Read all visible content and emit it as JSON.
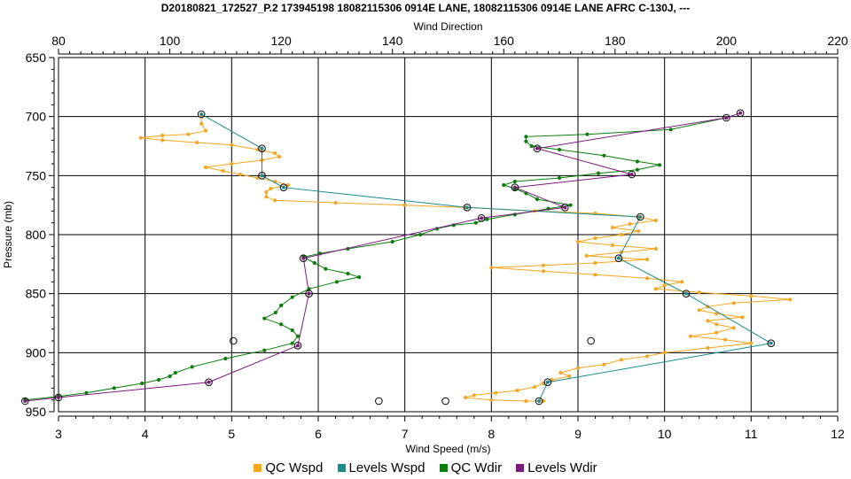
{
  "title": "D20180821_172527_P.2 173945198 18082115306 0914E LANE, 18082115306 0914E LANE AFRC C-130J, ---",
  "chart_data": {
    "type": "line",
    "title": "D20180821_172527_P.2 173945198 18082115306 0914E LANE, 18082115306 0914E LANE AFRC C-130J, ---",
    "xlabel_bottom": "Wind Speed (m/s)",
    "xlabel_top": "Wind Direction",
    "ylabel": "Pressure (mb)",
    "x_bottom_range": [
      3,
      12
    ],
    "x_bottom_ticks": [
      "3",
      "4",
      "5",
      "6",
      "7",
      "8",
      "9",
      "10",
      "11",
      "12"
    ],
    "x_top_range": [
      80,
      220
    ],
    "x_top_ticks": [
      "80",
      "100",
      "120",
      "140",
      "160",
      "180",
      "200",
      "220"
    ],
    "y_range": [
      650,
      950
    ],
    "y_inverted": true,
    "y_ticks": [
      "650",
      "700",
      "750",
      "800",
      "850",
      "900",
      "950"
    ],
    "grid": true,
    "legend_position": "bottom",
    "series": [
      {
        "name": "QC Wspd",
        "axis": "bottom",
        "color": "#f5a623",
        "marker": "dot",
        "points": [
          [
            4.65,
            700
          ],
          [
            4.65,
            706
          ],
          [
            4.7,
            712
          ],
          [
            4.5,
            715
          ],
          [
            4.2,
            716
          ],
          [
            3.95,
            718
          ],
          [
            4.2,
            720
          ],
          [
            4.6,
            722
          ],
          [
            5.0,
            724
          ],
          [
            5.3,
            728
          ],
          [
            5.5,
            731
          ],
          [
            5.55,
            734
          ],
          [
            5.35,
            737
          ],
          [
            5.0,
            740
          ],
          [
            4.7,
            743
          ],
          [
            4.9,
            746
          ],
          [
            5.1,
            749
          ],
          [
            5.3,
            752
          ],
          [
            5.5,
            755
          ],
          [
            5.65,
            758
          ],
          [
            5.45,
            761
          ],
          [
            5.4,
            764
          ],
          [
            5.4,
            768
          ],
          [
            5.5,
            771
          ],
          [
            6.2,
            773
          ],
          [
            7.0,
            775
          ],
          [
            7.7,
            777
          ],
          [
            8.5,
            780
          ],
          [
            9.2,
            782
          ],
          [
            9.7,
            785
          ],
          [
            9.9,
            788
          ],
          [
            9.6,
            791
          ],
          [
            9.4,
            794
          ],
          [
            9.7,
            797
          ],
          [
            9.5,
            800
          ],
          [
            9.2,
            803
          ],
          [
            9.0,
            806
          ],
          [
            9.4,
            809
          ],
          [
            9.9,
            812
          ],
          [
            9.5,
            815
          ],
          [
            9.1,
            818
          ],
          [
            9.8,
            821
          ],
          [
            9.2,
            824
          ],
          [
            8.6,
            826
          ],
          [
            8.0,
            828
          ],
          [
            8.6,
            831
          ],
          [
            9.2,
            834
          ],
          [
            9.8,
            837
          ],
          [
            10.2,
            840
          ],
          [
            10.0,
            843
          ],
          [
            9.9,
            846
          ],
          [
            10.4,
            849
          ],
          [
            11.0,
            852
          ],
          [
            11.45,
            855
          ],
          [
            10.8,
            858
          ],
          [
            10.5,
            861
          ],
          [
            10.4,
            864
          ],
          [
            10.6,
            867
          ],
          [
            10.9,
            870
          ],
          [
            10.5,
            873
          ],
          [
            10.6,
            876
          ],
          [
            10.8,
            879
          ],
          [
            10.6,
            883
          ],
          [
            10.3,
            886
          ],
          [
            10.7,
            889
          ],
          [
            11.0,
            892
          ],
          [
            10.5,
            896
          ],
          [
            10.0,
            900
          ],
          [
            9.8,
            903
          ],
          [
            9.5,
            906
          ],
          [
            9.3,
            910
          ],
          [
            9.0,
            913
          ],
          [
            8.8,
            917
          ],
          [
            8.9,
            920
          ],
          [
            8.7,
            923
          ],
          [
            8.6,
            926
          ],
          [
            8.5,
            929
          ],
          [
            8.3,
            932
          ],
          [
            8.05,
            934
          ],
          [
            7.8,
            936
          ],
          [
            7.7,
            938
          ],
          [
            8.0,
            940
          ],
          [
            8.4,
            941
          ],
          [
            8.6,
            941
          ]
        ]
      },
      {
        "name": "Levels Wspd",
        "axis": "bottom",
        "color": "#1a8a8a",
        "marker": "circle",
        "points": [
          [
            4.65,
            698
          ],
          [
            5.35,
            727
          ],
          [
            5.35,
            750
          ],
          [
            5.6,
            760
          ],
          [
            7.72,
            777
          ],
          [
            9.72,
            785
          ],
          [
            9.47,
            820
          ],
          [
            10.25,
            850
          ],
          [
            11.23,
            892
          ],
          [
            8.65,
            925
          ],
          [
            8.55,
            941
          ]
        ]
      },
      {
        "name": "QC Wdir",
        "axis": "top",
        "color": "#0a7d0a",
        "marker": "dot",
        "points": [
          [
            200,
            701
          ],
          [
            190,
            711
          ],
          [
            175,
            715
          ],
          [
            164,
            717
          ],
          [
            164,
            721
          ],
          [
            165,
            725
          ],
          [
            170,
            728
          ],
          [
            178,
            733
          ],
          [
            184,
            738
          ],
          [
            188,
            741
          ],
          [
            184,
            745
          ],
          [
            177,
            748
          ],
          [
            170,
            752
          ],
          [
            162,
            755
          ],
          [
            160,
            758
          ],
          [
            162,
            761
          ],
          [
            164,
            765
          ],
          [
            166,
            770
          ],
          [
            172,
            775
          ],
          [
            168,
            778
          ],
          [
            162,
            783
          ],
          [
            157,
            787
          ],
          [
            155,
            790
          ],
          [
            151,
            792
          ],
          [
            148,
            795
          ],
          [
            145,
            800
          ],
          [
            140,
            806
          ],
          [
            132,
            812
          ],
          [
            127,
            816
          ],
          [
            124,
            819
          ],
          [
            126,
            824
          ],
          [
            128,
            829
          ],
          [
            132,
            833
          ],
          [
            134,
            836
          ],
          [
            130,
            840
          ],
          [
            125,
            846
          ],
          [
            122,
            853
          ],
          [
            120,
            860
          ],
          [
            119,
            866
          ],
          [
            117,
            871
          ],
          [
            120,
            876
          ],
          [
            122,
            881
          ],
          [
            123,
            886
          ],
          [
            122,
            892
          ],
          [
            117,
            898
          ],
          [
            110,
            905
          ],
          [
            104,
            912
          ],
          [
            101,
            917
          ],
          [
            100,
            920
          ],
          [
            98,
            923
          ],
          [
            95,
            926
          ],
          [
            90,
            930
          ],
          [
            85,
            934
          ],
          [
            80,
            937
          ],
          [
            74,
            940
          ]
        ]
      },
      {
        "name": "Levels Wdir",
        "axis": "top",
        "color": "#7b1a7b",
        "marker": "circle",
        "points": [
          [
            202.5,
            697
          ],
          [
            200,
            701
          ],
          [
            166,
            727
          ],
          [
            183,
            749
          ],
          [
            162,
            760
          ],
          [
            171,
            777
          ],
          [
            156,
            786
          ],
          [
            124,
            820
          ],
          [
            125,
            850
          ],
          [
            123,
            894
          ],
          [
            107,
            925
          ],
          [
            80,
            938
          ],
          [
            74,
            941
          ]
        ]
      }
    ],
    "annotations": [
      {
        "axis": "bottom",
        "x": 5.02,
        "y": 890
      },
      {
        "axis": "bottom",
        "x": 6.7,
        "y": 941
      },
      {
        "axis": "bottom",
        "x": 7.47,
        "y": 941
      },
      {
        "axis": "bottom",
        "x": 9.15,
        "y": 890
      }
    ]
  }
}
